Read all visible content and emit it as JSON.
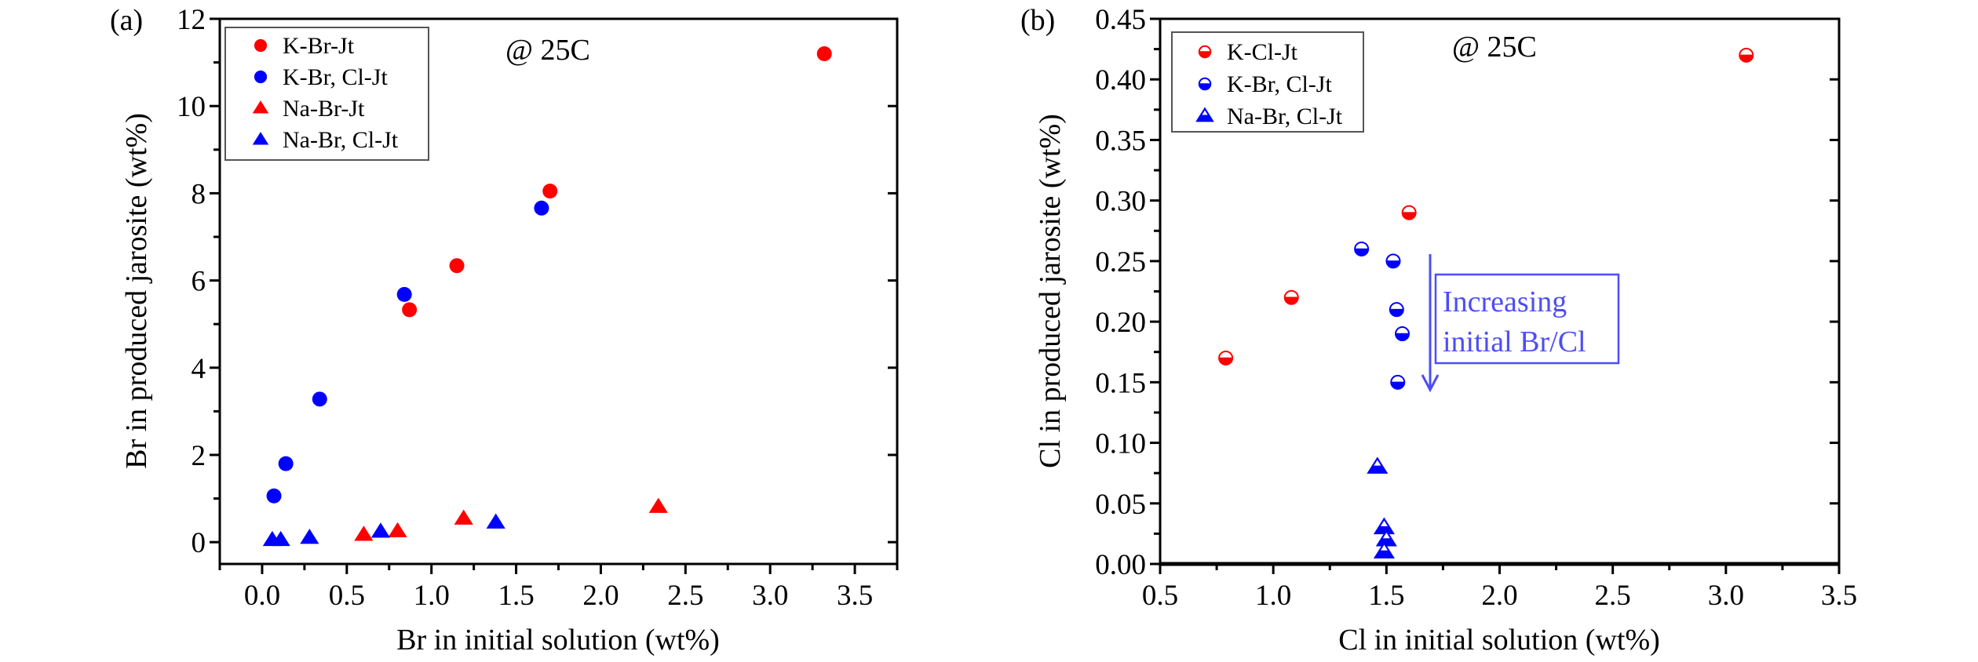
{
  "chart_data": [
    {
      "type": "scatter",
      "panel_label": "(a)",
      "annotation": "@ 25C",
      "xlabel": "Br in initial solution (wt%)",
      "ylabel": "Br in produced jarosite (wt%)",
      "xlim": [
        -0.25,
        3.75
      ],
      "ylim": [
        -0.5,
        12
      ],
      "xticks": [
        0.0,
        0.5,
        1.0,
        1.5,
        2.0,
        2.5,
        3.0,
        3.5
      ],
      "xtick_labels": [
        "0.0",
        "0.5",
        "1.0",
        "1.5",
        "2.0",
        "2.5",
        "3.0",
        "3.5"
      ],
      "yticks": [
        0,
        2,
        4,
        6,
        8,
        10,
        12
      ],
      "ytick_labels": [
        "0",
        "2",
        "4",
        "6",
        "8",
        "10",
        "12"
      ],
      "grid": false,
      "legend_position": "top-left",
      "series": [
        {
          "name": "K-Br-Jt",
          "marker": "circle",
          "fill": "full",
          "color": "#ff0000",
          "x": [
            0.87,
            1.15,
            1.7,
            3.32
          ],
          "y": [
            5.33,
            6.34,
            8.05,
            11.2
          ]
        },
        {
          "name": "K-Br, Cl-Jt",
          "marker": "circle",
          "fill": "full",
          "color": "#0000ff",
          "x": [
            0.07,
            0.14,
            0.34,
            0.84,
            1.65
          ],
          "y": [
            1.06,
            1.8,
            3.28,
            5.68,
            7.66
          ]
        },
        {
          "name": "Na-Br-Jt",
          "marker": "triangle",
          "fill": "full",
          "color": "#ff0000",
          "x": [
            0.6,
            0.8,
            1.19,
            2.34
          ],
          "y": [
            0.17,
            0.25,
            0.54,
            0.81
          ]
        },
        {
          "name": "Na-Br, Cl-Jt",
          "marker": "triangle",
          "fill": "full",
          "color": "#0000ff",
          "x": [
            0.06,
            0.11,
            0.28,
            0.7,
            1.38
          ],
          "y": [
            0.05,
            0.05,
            0.1,
            0.24,
            0.45
          ]
        }
      ]
    },
    {
      "type": "scatter",
      "panel_label": "(b)",
      "annotation": "@ 25C",
      "callout": {
        "lines": [
          "Increasing",
          "initial Br/Cl"
        ],
        "color": "#4d4df5"
      },
      "xlabel": "Cl in initial solution (wt%)",
      "ylabel": "Cl in produced jarosite (wt%)",
      "xlim": [
        0.5,
        3.5
      ],
      "ylim": [
        0,
        0.45
      ],
      "xticks": [
        0.5,
        1.0,
        1.5,
        2.0,
        2.5,
        3.0,
        3.5
      ],
      "xtick_labels": [
        "0.5",
        "1.0",
        "1.5",
        "2.0",
        "2.5",
        "3.0",
        "3.5"
      ],
      "yticks": [
        0.0,
        0.05,
        0.1,
        0.15,
        0.2,
        0.25,
        0.3,
        0.35,
        0.4,
        0.45
      ],
      "ytick_labels": [
        "0.00",
        "0.05",
        "0.10",
        "0.15",
        "0.20",
        "0.25",
        "0.30",
        "0.35",
        "0.40",
        "0.45"
      ],
      "grid": false,
      "legend_position": "top-left",
      "series": [
        {
          "name": "K-Cl-Jt",
          "marker": "circle",
          "fill": "bottom-half",
          "color": "#ff0000",
          "x": [
            0.79,
            1.08,
            1.6,
            3.09
          ],
          "y": [
            0.17,
            0.22,
            0.29,
            0.42
          ]
        },
        {
          "name": "K-Br, Cl-Jt",
          "marker": "circle",
          "fill": "bottom-half",
          "color": "#0000ff",
          "x": [
            1.39,
            1.53,
            1.545,
            1.57,
            1.55
          ],
          "y": [
            0.26,
            0.25,
            0.21,
            0.19,
            0.15
          ]
        },
        {
          "name": "Na-Br, Cl-Jt",
          "marker": "triangle",
          "fill": "bottom-half",
          "color": "#0000ff",
          "x": [
            1.46,
            1.49,
            1.5,
            1.49
          ],
          "y": [
            0.08,
            0.03,
            0.02,
            0.01
          ]
        }
      ]
    }
  ]
}
